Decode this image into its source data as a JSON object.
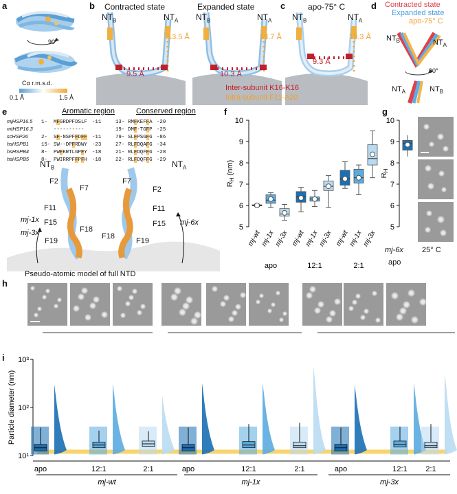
{
  "panel_labels": {
    "a": "a",
    "b": "b",
    "c": "c",
    "d": "d",
    "e": "e",
    "f": "f",
    "g": "g",
    "h": "h",
    "i": "i"
  },
  "panel_a": {
    "legend_title": "Cα r.m.s.d.",
    "legend_min": "0.1 Å",
    "legend_max": "1.5 Å",
    "rotation": "90°"
  },
  "panel_b": {
    "contracted_title": "Contracted state",
    "expanded_title": "Expanded state",
    "nt_b": "NT",
    "nt_a": "NT",
    "sub_b": "B",
    "sub_a": "A",
    "contracted_inter": "9.5 Å",
    "contracted_intra": "13.5 Å",
    "expanded_inter": "10.3 Å",
    "expanded_intra": "13.7 Å",
    "legend_inter": "Inter-subunit K16-K16",
    "legend_intra": "Intra-subunit F11-A20"
  },
  "panel_c": {
    "title": "apo-75° C",
    "inter": "9.3 Å",
    "intra": "13.3 Å"
  },
  "panel_d": {
    "legend": [
      "Contracted state",
      "Expanded state",
      "apo-75° C"
    ],
    "rotation": "90°"
  },
  "panel_e": {
    "aromatic_header": "Aromatic region",
    "conserved_header": "Conserved region",
    "rows": [
      {
        "name": "mjHSP16.5",
        "start": "1-",
        "arom": "MFGRDPFDSLF",
        "aend": "-11",
        "cstart": "13-",
        "cons": "RMFKEFFA",
        "cend": "-20"
      },
      {
        "name": "mtHSP16.3",
        "start": "",
        "arom": "----------",
        "aend": "",
        "cstart": "19-",
        "cons": "DMF-TGFP",
        "cend": "-25"
      },
      {
        "name": "scHSP26",
        "start": "2-",
        "arom": "SF-NSPFFDFF",
        "aend": "-11",
        "cstart": "79-",
        "cons": "SLFPSGFG",
        "cend": "-86"
      },
      {
        "name": "hsHSPB1",
        "start": "15-",
        "arom": "SW--DPFRDWY",
        "aend": "-23",
        "cstart": "27-",
        "cons": "RLFDQAFG",
        "cend": "-34"
      },
      {
        "name": "hsHSPB4",
        "start": "8-",
        "arom": "PWFKRTLGPFY",
        "aend": "-18",
        "cstart": "21-",
        "cons": "RLFDQFFG",
        "cend": "-28"
      },
      {
        "name": "hsHSPB5",
        "start": "8-",
        "arom": "PWIRRPFFPFH",
        "aend": "-18",
        "cstart": "22-",
        "cons": "RLFDQFFG",
        "cend": "-29"
      }
    ],
    "model_caption": "Pseudo-atomic model of full NTD",
    "residues_b": [
      "F2",
      "F7",
      "F11",
      "F15",
      "F18",
      "F19"
    ],
    "residues_a": [
      "F7",
      "F2",
      "F11",
      "F15",
      "F18",
      "F19"
    ],
    "mutant_1x": "mj-1x",
    "mutant_3x": "mj-3x",
    "mutant_6x": "mj-6x"
  },
  "chart_data": [
    {
      "panel": "f",
      "type": "box",
      "ylabel": "RH (nm)",
      "ylim": [
        5,
        10
      ],
      "yticks": [
        5,
        6,
        7,
        8,
        9,
        10
      ],
      "groups": [
        "apo",
        "12:1",
        "2:1"
      ],
      "categories": [
        "mj-wt",
        "mj-1x",
        "mj-3x",
        "mj-wt",
        "mj-1x",
        "mj-3x",
        "mj-wt",
        "mj-1x",
        "mj-3x"
      ],
      "boxes": [
        {
          "min": 5.95,
          "q1": 5.98,
          "median": 6.0,
          "q3": 6.03,
          "max": 6.06,
          "mean": 6.0,
          "color": "#1a6fb5"
        },
        {
          "min": 5.9,
          "q1": 6.1,
          "median": 6.25,
          "q3": 6.5,
          "max": 6.6,
          "mean": 6.3,
          "color": "#5aabe0"
        },
        {
          "min": 5.3,
          "q1": 5.5,
          "median": 5.6,
          "q3": 5.85,
          "max": 6.05,
          "mean": 5.65,
          "color": "#b9dbf2"
        },
        {
          "min": 5.7,
          "q1": 6.15,
          "median": 6.4,
          "q3": 6.65,
          "max": 6.85,
          "mean": 6.35,
          "color": "#1a6fb5"
        },
        {
          "min": 5.95,
          "q1": 6.2,
          "median": 6.3,
          "q3": 6.4,
          "max": 6.7,
          "mean": 6.3,
          "color": "#5aabe0"
        },
        {
          "min": 5.9,
          "q1": 6.7,
          "median": 6.9,
          "q3": 7.15,
          "max": 7.4,
          "mean": 6.9,
          "color": "#b9dbf2"
        },
        {
          "min": 6.8,
          "q1": 6.95,
          "median": 7.25,
          "q3": 7.65,
          "max": 8.05,
          "mean": 7.25,
          "color": "#1a6fb5"
        },
        {
          "min": 6.5,
          "q1": 7.05,
          "median": 7.3,
          "q3": 7.7,
          "max": 7.9,
          "mean": 7.3,
          "color": "#5aabe0"
        },
        {
          "min": 7.3,
          "q1": 7.9,
          "median": 8.2,
          "q3": 8.85,
          "max": 9.5,
          "mean": 8.4,
          "color": "#b9dbf2"
        }
      ]
    },
    {
      "panel": "g",
      "type": "box",
      "ylabel": "RH (nm)",
      "ylim": [
        5,
        10
      ],
      "yticks": [
        5,
        6,
        7,
        8,
        9,
        10
      ],
      "categories": [
        "mj-6x"
      ],
      "group": "apo",
      "boxes": [
        {
          "min": 8.3,
          "q1": 8.6,
          "median": 8.9,
          "q3": 9.05,
          "max": 9.3,
          "mean": 8.85,
          "color": "#1a6fb5"
        }
      ]
    },
    {
      "panel": "i",
      "type": "box",
      "ylabel": "Particle diameter (nm)",
      "yscale": "log",
      "ylim": [
        10,
        1000
      ],
      "ytick_labels": [
        "10¹",
        "10²",
        "10³"
      ],
      "groups": [
        "mj-wt",
        "mj-1x",
        "mj-3x"
      ],
      "categories": [
        "apo",
        "12:1",
        "2:1",
        "apo",
        "12:1",
        "2:1",
        "apo",
        "12:1",
        "2:1"
      ],
      "reference_line": 12,
      "boxes": [
        {
          "q1": 12.5,
          "median": 14.5,
          "q3": 17,
          "whisker_high": 38,
          "color": "#1a6fb5"
        },
        {
          "q1": 14.5,
          "median": 16.5,
          "q3": 19,
          "whisker_high": 33,
          "color": "#5aabe0"
        },
        {
          "q1": 15.5,
          "median": 17.5,
          "q3": 20,
          "whisker_high": 32,
          "color": "#b9dbf2"
        },
        {
          "q1": 12.5,
          "median": 14.5,
          "q3": 17,
          "whisker_high": 38,
          "color": "#1a6fb5"
        },
        {
          "q1": 14.5,
          "median": 16.5,
          "q3": 19.5,
          "whisker_high": 45,
          "color": "#5aabe0"
        },
        {
          "q1": 14.5,
          "median": 16,
          "q3": 19,
          "whisker_high": 48,
          "color": "#b9dbf2"
        },
        {
          "q1": 12.5,
          "median": 14.5,
          "q3": 17,
          "whisker_high": 38,
          "color": "#1a6fb5"
        },
        {
          "q1": 15,
          "median": 17,
          "q3": 20,
          "whisker_high": 40,
          "color": "#5aabe0"
        },
        {
          "q1": 14.5,
          "median": 16,
          "q3": 19,
          "whisker_high": 45,
          "color": "#b9dbf2"
        }
      ],
      "dist_tops": [
        300,
        320,
        180,
        320,
        330,
        700,
        300,
        330,
        500
      ]
    }
  ],
  "panel_g_labels": {
    "xlabel": "mj-6x",
    "group": "apo",
    "temp": "25° C"
  },
  "colors": {
    "orange": "#f0a030",
    "red": "#c0202a",
    "blue": "#4a9fe0",
    "contracted": "#e0404a",
    "expanded": "#5aaeea",
    "apo75": "#f6b34a"
  }
}
